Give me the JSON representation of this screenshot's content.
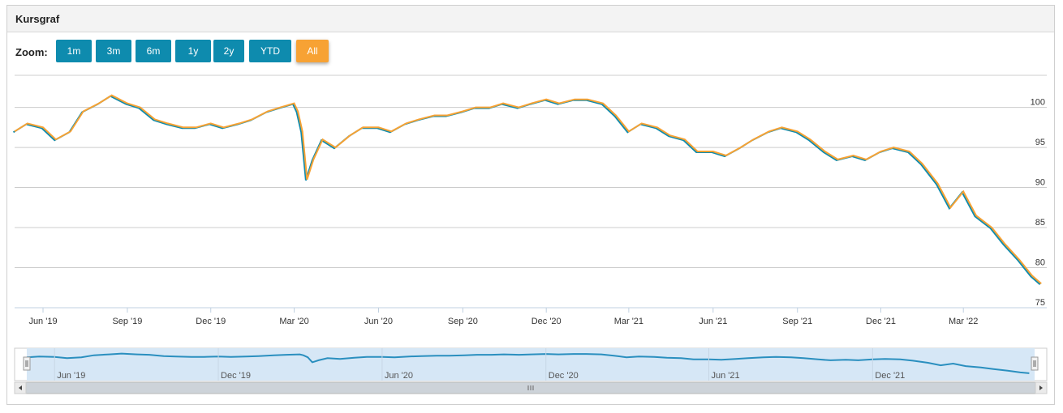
{
  "panel": {
    "title": "Kursgraf"
  },
  "zoom": {
    "label": "Zoom:",
    "buttons": [
      {
        "label": "1m",
        "active": false
      },
      {
        "label": "3m",
        "active": false
      },
      {
        "label": "6m",
        "active": false
      },
      {
        "label": "1y",
        "active": false
      },
      {
        "label": "2y",
        "active": false
      },
      {
        "label": "YTD",
        "active": false
      },
      {
        "label": "All",
        "active": true
      }
    ]
  },
  "colors": {
    "line_primary": "#f7a234",
    "line_secondary": "#0e8bae",
    "navigator_line": "#2a8fbf",
    "navigator_fill": "#d6e7f6",
    "button": "#0e8bae",
    "button_active": "#f7a234",
    "grid": "#cccccc"
  },
  "chart_data": {
    "type": "line",
    "title": "",
    "xlabel": "",
    "ylabel": "",
    "ylim": [
      75,
      104
    ],
    "xlim": [
      "2019-05-01",
      "2022-05-31"
    ],
    "yticks": [
      75,
      80,
      85,
      90,
      95,
      100
    ],
    "grid": true,
    "xticks": [
      {
        "label": "Jun '19",
        "date": "2019-06-01"
      },
      {
        "label": "Sep '19",
        "date": "2019-09-01"
      },
      {
        "label": "Dec '19",
        "date": "2019-12-01"
      },
      {
        "label": "Mar '20",
        "date": "2020-03-01"
      },
      {
        "label": "Jun '20",
        "date": "2020-06-01"
      },
      {
        "label": "Sep '20",
        "date": "2020-09-01"
      },
      {
        "label": "Dec '20",
        "date": "2020-12-01"
      },
      {
        "label": "Mar '21",
        "date": "2021-03-01"
      },
      {
        "label": "Jun '21",
        "date": "2021-06-01"
      },
      {
        "label": "Sep '21",
        "date": "2021-09-01"
      },
      {
        "label": "Dec '21",
        "date": "2021-12-01"
      },
      {
        "label": "Mar '22",
        "date": "2022-03-01"
      }
    ],
    "navigator_ticks": [
      {
        "label": "Jun '19",
        "date": "2019-06-01"
      },
      {
        "label": "Dec '19",
        "date": "2019-12-01"
      },
      {
        "label": "Jun '20",
        "date": "2020-06-01"
      },
      {
        "label": "Dec '20",
        "date": "2020-12-01"
      },
      {
        "label": "Jun '21",
        "date": "2021-06-01"
      },
      {
        "label": "Dec '21",
        "date": "2021-12-01"
      }
    ],
    "series": [
      {
        "values": [
          [
            "2019-05-01",
            97.0
          ],
          [
            "2019-05-15",
            98.0
          ],
          [
            "2019-06-01",
            97.5
          ],
          [
            "2019-06-15",
            96.0
          ],
          [
            "2019-07-01",
            97.0
          ],
          [
            "2019-07-15",
            99.5
          ],
          [
            "2019-08-01",
            100.5
          ],
          [
            "2019-08-15",
            101.5
          ],
          [
            "2019-09-01",
            100.5
          ],
          [
            "2019-09-15",
            100.0
          ],
          [
            "2019-10-01",
            98.5
          ],
          [
            "2019-10-15",
            98.0
          ],
          [
            "2019-11-01",
            97.5
          ],
          [
            "2019-11-15",
            97.5
          ],
          [
            "2019-12-01",
            98.0
          ],
          [
            "2019-12-15",
            97.5
          ],
          [
            "2020-01-01",
            98.0
          ],
          [
            "2020-01-15",
            98.5
          ],
          [
            "2020-02-01",
            99.5
          ],
          [
            "2020-02-15",
            100.0
          ],
          [
            "2020-03-01",
            100.5
          ],
          [
            "2020-03-05",
            99.5
          ],
          [
            "2020-03-10",
            97.0
          ],
          [
            "2020-03-15",
            91.0
          ],
          [
            "2020-03-22",
            93.5
          ],
          [
            "2020-04-01",
            96.0
          ],
          [
            "2020-04-15",
            95.0
          ],
          [
            "2020-05-01",
            96.5
          ],
          [
            "2020-05-15",
            97.5
          ],
          [
            "2020-06-01",
            97.5
          ],
          [
            "2020-06-15",
            97.0
          ],
          [
            "2020-07-01",
            98.0
          ],
          [
            "2020-07-15",
            98.5
          ],
          [
            "2020-08-01",
            99.0
          ],
          [
            "2020-08-15",
            99.0
          ],
          [
            "2020-09-01",
            99.5
          ],
          [
            "2020-09-15",
            100.0
          ],
          [
            "2020-10-01",
            100.0
          ],
          [
            "2020-10-15",
            100.5
          ],
          [
            "2020-11-01",
            100.0
          ],
          [
            "2020-11-15",
            100.5
          ],
          [
            "2020-12-01",
            101.0
          ],
          [
            "2020-12-15",
            100.5
          ],
          [
            "2021-01-01",
            101.0
          ],
          [
            "2021-01-15",
            101.0
          ],
          [
            "2021-02-01",
            100.5
          ],
          [
            "2021-02-15",
            99.0
          ],
          [
            "2021-03-01",
            97.0
          ],
          [
            "2021-03-15",
            98.0
          ],
          [
            "2021-04-01",
            97.5
          ],
          [
            "2021-04-15",
            96.5
          ],
          [
            "2021-05-01",
            96.0
          ],
          [
            "2021-05-15",
            94.5
          ],
          [
            "2021-06-01",
            94.5
          ],
          [
            "2021-06-15",
            94.0
          ],
          [
            "2021-07-01",
            95.0
          ],
          [
            "2021-07-15",
            96.0
          ],
          [
            "2021-08-01",
            97.0
          ],
          [
            "2021-08-15",
            97.5
          ],
          [
            "2021-09-01",
            97.0
          ],
          [
            "2021-09-15",
            96.0
          ],
          [
            "2021-10-01",
            94.5
          ],
          [
            "2021-10-15",
            93.5
          ],
          [
            "2021-11-01",
            94.0
          ],
          [
            "2021-11-15",
            93.5
          ],
          [
            "2021-12-01",
            94.5
          ],
          [
            "2021-12-15",
            95.0
          ],
          [
            "2022-01-01",
            94.5
          ],
          [
            "2022-01-15",
            93.0
          ],
          [
            "2022-02-01",
            90.5
          ],
          [
            "2022-02-15",
            87.5
          ],
          [
            "2022-03-01",
            89.5
          ],
          [
            "2022-03-15",
            86.5
          ],
          [
            "2022-04-01",
            85.0
          ],
          [
            "2022-04-15",
            83.0
          ],
          [
            "2022-05-01",
            81.0
          ],
          [
            "2022-05-15",
            79.0
          ],
          [
            "2022-05-25",
            78.0
          ]
        ]
      }
    ]
  }
}
